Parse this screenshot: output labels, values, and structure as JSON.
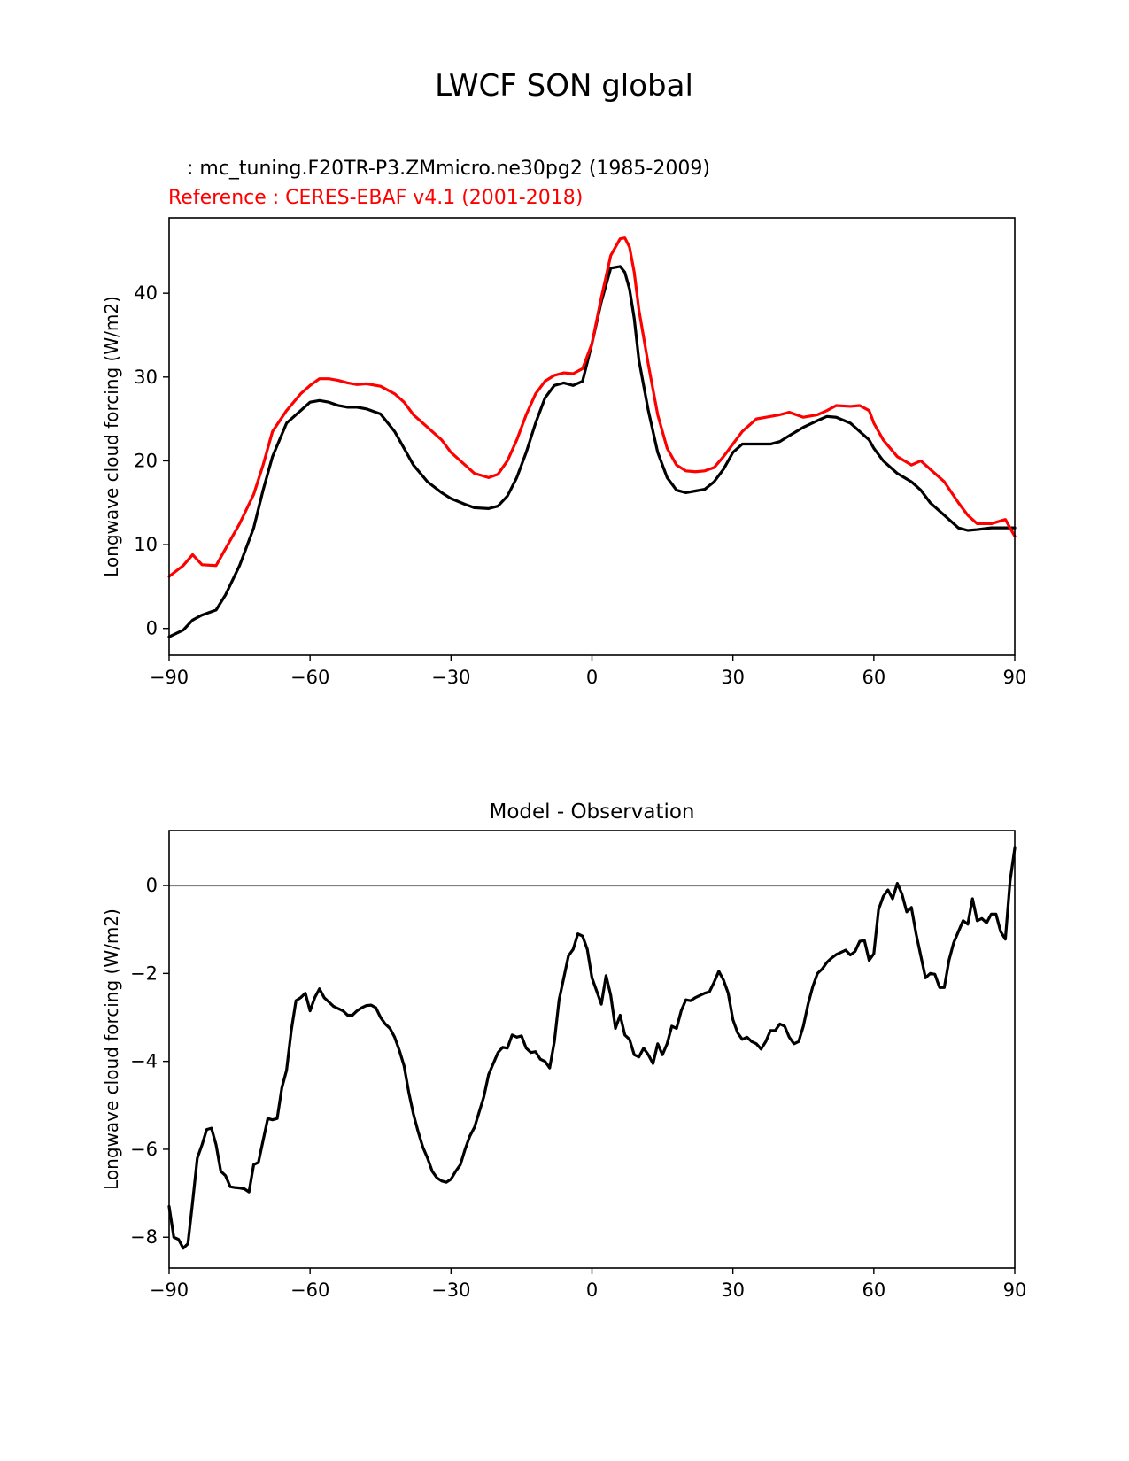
{
  "figure": {
    "title": "LWCF SON global",
    "model_label": "   : mc_tuning.F20TR-P3.ZMmicro.ne30pg2 (1985-2009)",
    "ref_label": "Reference : CERES-EBAF v4.1 (2001-2018)",
    "colors": {
      "model": "#000000",
      "reference": "#ff0000",
      "zero_line": "#808080"
    }
  },
  "chart_data": [
    {
      "type": "line",
      "title": "",
      "xlabel": "",
      "ylabel": "Longwave cloud forcing (W/m2)",
      "xlim": [
        -90,
        90
      ],
      "ylim": [
        -3.2,
        49
      ],
      "xticks": [
        -90,
        -60,
        -30,
        0,
        30,
        60,
        90
      ],
      "xtick_labels": [
        "−90",
        "−60",
        "−30",
        "0",
        "30",
        "60",
        "90"
      ],
      "yticks": [
        0,
        10,
        20,
        30,
        40
      ],
      "ytick_labels": [
        "0",
        "10",
        "20",
        "30",
        "40"
      ],
      "grid": false,
      "x": [
        -90,
        -87,
        -85,
        -83,
        -80,
        -78,
        -75,
        -72,
        -70,
        -68,
        -65,
        -62,
        -60,
        -58,
        -56,
        -54,
        -52,
        -50,
        -48,
        -45,
        -42,
        -40,
        -38,
        -35,
        -32,
        -30,
        -27,
        -25,
        -22,
        -20,
        -18,
        -16,
        -14,
        -12,
        -10,
        -8,
        -6,
        -4,
        -2,
        0,
        2,
        4,
        6,
        7,
        8,
        9,
        10,
        12,
        14,
        16,
        18,
        20,
        22,
        24,
        26,
        28,
        30,
        32,
        35,
        38,
        40,
        42,
        45,
        48,
        50,
        52,
        55,
        57,
        59,
        60,
        62,
        65,
        68,
        70,
        72,
        75,
        78,
        80,
        82,
        85,
        88,
        90
      ],
      "series": [
        {
          "name": "",
          "color": "#000000",
          "values": [
            -1.0,
            -0.2,
            1.0,
            1.6,
            2.2,
            4.0,
            7.5,
            12.0,
            16.5,
            20.5,
            24.5,
            26.0,
            27.0,
            27.2,
            27.0,
            26.6,
            26.4,
            26.4,
            26.2,
            25.6,
            23.5,
            21.5,
            19.5,
            17.5,
            16.2,
            15.5,
            14.8,
            14.4,
            14.3,
            14.6,
            15.8,
            18.0,
            21.0,
            24.5,
            27.5,
            29.0,
            29.3,
            29.0,
            29.5,
            34.0,
            39.0,
            43.0,
            43.2,
            42.5,
            40.5,
            37.0,
            32.0,
            26.0,
            21.0,
            18.0,
            16.5,
            16.2,
            16.4,
            16.6,
            17.5,
            19.0,
            21.0,
            22.0,
            22.0,
            22.0,
            22.3,
            23.0,
            24.0,
            24.8,
            25.3,
            25.2,
            24.5,
            23.5,
            22.5,
            21.5,
            20.0,
            18.5,
            17.5,
            16.5,
            15.0,
            13.5,
            12.0,
            11.7,
            11.8,
            12.0,
            12.0,
            12.0
          ]
        },
        {
          "name": "",
          "color": "#ff0000",
          "values": [
            6.2,
            7.5,
            8.8,
            7.6,
            7.5,
            9.5,
            12.5,
            16.0,
            19.5,
            23.5,
            26.0,
            28.0,
            29.0,
            29.8,
            29.8,
            29.6,
            29.3,
            29.1,
            29.2,
            28.9,
            28.0,
            27.0,
            25.5,
            24.0,
            22.5,
            21.0,
            19.5,
            18.5,
            18.0,
            18.4,
            20.0,
            22.5,
            25.5,
            28.0,
            29.5,
            30.2,
            30.5,
            30.4,
            31.0,
            34.0,
            39.5,
            44.5,
            46.5,
            46.6,
            45.5,
            42.5,
            38.0,
            31.5,
            25.5,
            21.5,
            19.5,
            18.8,
            18.7,
            18.8,
            19.2,
            20.5,
            22.0,
            23.5,
            25.0,
            25.3,
            25.5,
            25.8,
            25.2,
            25.5,
            26.0,
            26.6,
            26.5,
            26.6,
            26.0,
            24.5,
            22.5,
            20.5,
            19.5,
            20.0,
            19.0,
            17.5,
            15.0,
            13.5,
            12.5,
            12.5,
            13.0,
            11.0
          ]
        }
      ]
    },
    {
      "type": "line",
      "title": "Model - Observation",
      "xlabel": "",
      "ylabel": "Longwave cloud forcing (W/m2)",
      "xlim": [
        -90,
        90
      ],
      "ylim": [
        -8.7,
        1.25
      ],
      "xticks": [
        -90,
        -60,
        -30,
        0,
        30,
        60,
        90
      ],
      "xtick_labels": [
        "−90",
        "−60",
        "−30",
        "0",
        "30",
        "60",
        "90"
      ],
      "yticks": [
        0,
        -2,
        -4,
        -6,
        -8
      ],
      "ytick_labels": [
        "0",
        "−2",
        "−4",
        "−6",
        "−8"
      ],
      "grid": false,
      "zero_line": 0,
      "x": [
        -90,
        -89,
        -88,
        -87,
        -86,
        -85,
        -84,
        -83,
        -82,
        -81,
        -80,
        -79,
        -78,
        -77,
        -76,
        -75,
        -74,
        -73,
        -72,
        -71,
        -70,
        -69,
        -68,
        -67,
        -66,
        -65,
        -64,
        -63,
        -62,
        -61,
        -60,
        -59,
        -58,
        -57,
        -56,
        -55,
        -54,
        -53,
        -52,
        -51,
        -50,
        -49,
        -48,
        -47,
        -46,
        -45,
        -44,
        -43,
        -42,
        -41,
        -40,
        -39,
        -38,
        -37,
        -36,
        -35,
        -34,
        -33,
        -32,
        -31,
        -30,
        -29,
        -28,
        -27,
        -26,
        -25,
        -24,
        -23,
        -22,
        -21,
        -20,
        -19,
        -18,
        -17,
        -16,
        -15,
        -14,
        -13,
        -12,
        -11,
        -10,
        -9,
        -8,
        -7,
        -6,
        -5,
        -4,
        -3,
        -2,
        -1,
        0,
        1,
        2,
        3,
        4,
        5,
        6,
        7,
        8,
        9,
        10,
        11,
        12,
        13,
        14,
        15,
        16,
        17,
        18,
        19,
        20,
        21,
        22,
        23,
        24,
        25,
        26,
        27,
        28,
        29,
        30,
        31,
        32,
        33,
        34,
        35,
        36,
        37,
        38,
        39,
        40,
        41,
        42,
        43,
        44,
        45,
        46,
        47,
        48,
        49,
        50,
        51,
        52,
        53,
        54,
        55,
        56,
        57,
        58,
        59,
        60,
        61,
        62,
        63,
        64,
        65,
        66,
        67,
        68,
        69,
        70,
        71,
        72,
        73,
        74,
        75,
        76,
        77,
        78,
        79,
        80,
        81,
        82,
        83,
        84,
        85,
        86,
        87,
        88,
        89,
        90
      ],
      "series": [
        {
          "name": "",
          "color": "#000000",
          "values": [
            -7.3,
            -8.0,
            -8.05,
            -8.25,
            -8.15,
            -7.2,
            -6.2,
            -5.9,
            -5.55,
            -5.52,
            -5.9,
            -6.5,
            -6.6,
            -6.85,
            -6.87,
            -6.88,
            -6.9,
            -6.97,
            -6.35,
            -6.3,
            -5.8,
            -5.3,
            -5.33,
            -5.3,
            -4.6,
            -4.2,
            -3.3,
            -2.62,
            -2.55,
            -2.45,
            -2.85,
            -2.55,
            -2.35,
            -2.55,
            -2.65,
            -2.75,
            -2.8,
            -2.85,
            -2.95,
            -2.95,
            -2.85,
            -2.78,
            -2.73,
            -2.72,
            -2.78,
            -3.0,
            -3.15,
            -3.25,
            -3.45,
            -3.75,
            -4.1,
            -4.7,
            -5.2,
            -5.6,
            -5.95,
            -6.2,
            -6.5,
            -6.65,
            -6.72,
            -6.75,
            -6.68,
            -6.5,
            -6.35,
            -6.0,
            -5.7,
            -5.5,
            -5.15,
            -4.8,
            -4.3,
            -4.05,
            -3.8,
            -3.68,
            -3.7,
            -3.4,
            -3.45,
            -3.42,
            -3.7,
            -3.8,
            -3.78,
            -3.95,
            -4.0,
            -4.15,
            -3.55,
            -2.6,
            -2.1,
            -1.6,
            -1.45,
            -1.1,
            -1.15,
            -1.45,
            -2.1,
            -2.4,
            -2.7,
            -2.05,
            -2.5,
            -3.25,
            -2.95,
            -3.4,
            -3.5,
            -3.85,
            -3.9,
            -3.7,
            -3.85,
            -4.05,
            -3.6,
            -3.85,
            -3.6,
            -3.2,
            -3.25,
            -2.85,
            -2.6,
            -2.62,
            -2.55,
            -2.5,
            -2.45,
            -2.42,
            -2.2,
            -1.95,
            -2.15,
            -2.45,
            -3.05,
            -3.35,
            -3.5,
            -3.45,
            -3.55,
            -3.6,
            -3.72,
            -3.55,
            -3.3,
            -3.3,
            -3.15,
            -3.2,
            -3.45,
            -3.6,
            -3.55,
            -3.2,
            -2.7,
            -2.3,
            -2.0,
            -1.9,
            -1.75,
            -1.65,
            -1.57,
            -1.52,
            -1.47,
            -1.58,
            -1.5,
            -1.27,
            -1.25,
            -1.7,
            -1.55,
            -0.55,
            -0.25,
            -0.1,
            -0.3,
            0.05,
            -0.2,
            -0.6,
            -0.5,
            -1.1,
            -1.6,
            -2.1,
            -2.0,
            -2.02,
            -2.32,
            -2.32,
            -1.7,
            -1.3,
            -1.05,
            -0.8,
            -0.88,
            -0.3,
            -0.8,
            -0.75,
            -0.85,
            -0.65,
            -0.65,
            -1.05,
            -1.22,
            0.1,
            0.85
          ]
        }
      ]
    }
  ]
}
